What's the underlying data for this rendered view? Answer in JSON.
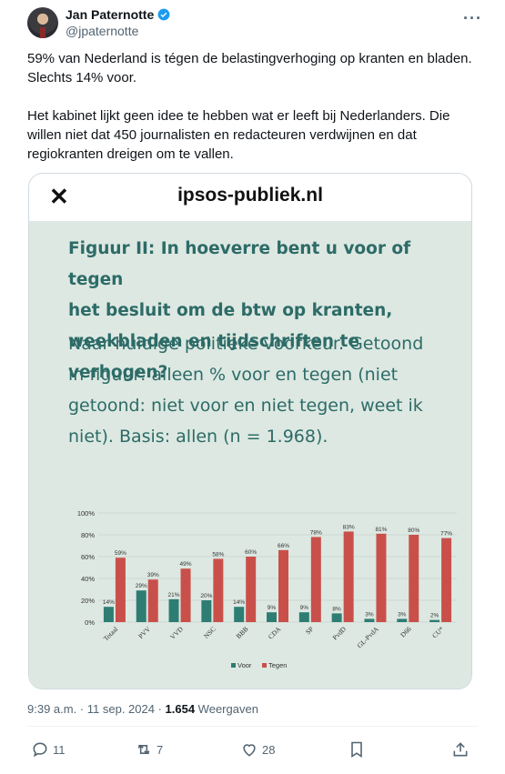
{
  "author": {
    "name": "Jan Paternotte",
    "handle": "@jpaternotte",
    "verified": true
  },
  "tweet": {
    "line1": "59% van Nederland is tégen de belastingverhoging op kranten en bladen.",
    "line2": "Slechts 14% voor.",
    "line3": "Het kabinet lijkt geen idee te hebben wat er leeft bij Nederlanders. Die",
    "line4": "willen niet dat 450 journalisten en redacteuren verdwijnen en dat",
    "line5": "regiokranten dreigen om te vallen."
  },
  "card": {
    "site": "ipsos-publiek.nl",
    "close_icon": "close-icon",
    "title_lines": [
      "Figuur II: In hoeverre bent u voor of tegen",
      "het besluit om de btw op kranten,",
      "weekbladen en tijdschriften te verhogen?"
    ],
    "subtitle_lines": [
      "Naar huidige politieke voorkeur. Getoond",
      "in figuur: alleen % voor en tegen (niet",
      "getoond: niet voor en niet tegen, weet ik",
      "niet). Basis: allen (n = 1.968)."
    ]
  },
  "chart_data": {
    "type": "bar",
    "categories": [
      "Totaal",
      "PVV",
      "VVD",
      "NSC",
      "BBB",
      "CDA",
      "SP",
      "PvdD",
      "GL-PvdA",
      "D66",
      "CU*"
    ],
    "series": [
      {
        "name": "Voor",
        "color": "#2e7d73",
        "values": [
          14,
          29,
          21,
          20,
          14,
          9,
          9,
          8,
          3,
          3,
          2
        ]
      },
      {
        "name": "Tegen",
        "color": "#c9504a",
        "values": [
          59,
          39,
          49,
          58,
          60,
          66,
          78,
          83,
          81,
          80,
          77
        ]
      }
    ],
    "value_labels": {
      "Voor": [
        "14%",
        "29%",
        "21%",
        "20%",
        "14%",
        "9%",
        "9%",
        "8%",
        "3%",
        "3%",
        "2%"
      ],
      "Tegen": [
        "59%",
        "39%",
        "49%",
        "58%",
        "60%",
        "66%",
        "78%",
        "83%",
        "81%",
        "80%",
        "77%"
      ]
    },
    "yticks": [
      "0%",
      "20%",
      "40%",
      "60%",
      "80%",
      "100%"
    ],
    "ylim": [
      0,
      100
    ],
    "grid": true,
    "legend": "bottom-center"
  },
  "meta": {
    "time": "9:39 a.m. · 11 sep. 2024 · ",
    "views": "1.654",
    "views_label": " Weergaven"
  },
  "actions": {
    "reply_count": "11",
    "retweet_count": "7",
    "like_count": "28"
  }
}
